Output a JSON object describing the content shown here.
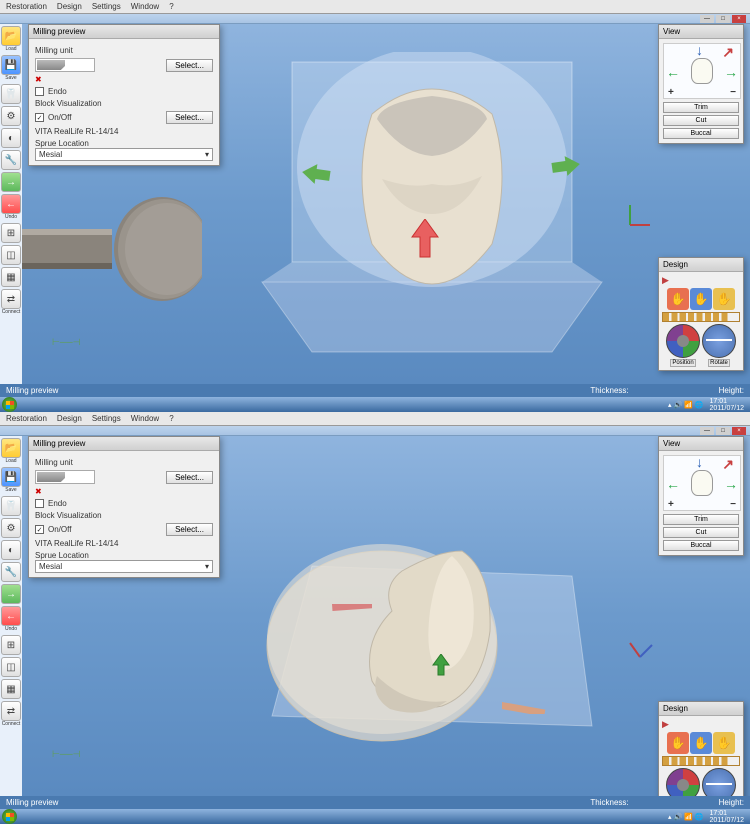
{
  "menubar": {
    "items": [
      "Restoration",
      "Design",
      "Settings",
      "Window",
      "?"
    ]
  },
  "windowButtons": {
    "min": "—",
    "max": "□",
    "close": "×"
  },
  "leftToolbar": [
    {
      "name": "load-icon",
      "label": "Load",
      "bg": "yellow",
      "glyph": "📂"
    },
    {
      "name": "save-icon",
      "label": "Save",
      "bg": "blue",
      "glyph": "💾"
    },
    {
      "name": "tool3-icon",
      "label": "",
      "bg": "",
      "glyph": "🦷"
    },
    {
      "name": "tool4-icon",
      "label": "",
      "bg": "",
      "glyph": "⚙"
    },
    {
      "name": "tool5-icon",
      "label": "",
      "bg": "",
      "glyph": "◐"
    },
    {
      "name": "tool6-icon",
      "label": "",
      "bg": "",
      "glyph": "🔧"
    },
    {
      "name": "tool7-icon",
      "label": "",
      "bg": "green",
      "glyph": "→"
    },
    {
      "name": "undo-icon",
      "label": "Undo",
      "bg": "red",
      "glyph": "←"
    },
    {
      "name": "tool9-icon",
      "label": "",
      "bg": "",
      "glyph": "⊞"
    },
    {
      "name": "tool10-icon",
      "label": "",
      "bg": "",
      "glyph": "◫"
    },
    {
      "name": "tool11-icon",
      "label": "",
      "bg": "",
      "glyph": "▦"
    },
    {
      "name": "connect-icon",
      "label": "Connect",
      "bg": "",
      "glyph": "⇄"
    }
  ],
  "millingPanel": {
    "title": "Milling preview",
    "unitLabel": "Milling unit",
    "selectBtn": "Select...",
    "endoLabel": "Endo",
    "endoChecked": false,
    "blockVisLabel": "Block Visualization",
    "onOffLabel": "On/Off",
    "onOffChecked": true,
    "materialText": "VITA RealLife RL-14/14",
    "sprueLabel": "Sprue Location",
    "sprueValue": "Mesial"
  },
  "viewPanel": {
    "title": "View",
    "btns": [
      "Trim",
      "Cut",
      "Buccal"
    ],
    "arrowColors": {
      "up": "#2a5fb4",
      "down": "#2aa84a",
      "left": "#2aa84a",
      "right": "#2aa84a",
      "upRight": "#c84040"
    }
  },
  "designPanel": {
    "title": "Design",
    "pointer": "▶",
    "hands": [
      {
        "bg": "#e87050",
        "glyph": "✋"
      },
      {
        "bg": "#5a8ad8",
        "glyph": "✋"
      },
      {
        "bg": "#e8c050",
        "glyph": "✋"
      }
    ],
    "positionLabel": "Position",
    "rotateLabel": "Rotate",
    "wheel1": {
      "c1": "#d04040",
      "c2": "#40a040",
      "c3": "#4060c0",
      "c4": "#804090"
    },
    "wheel2": {
      "c": "#5a8ad8"
    }
  },
  "statusbar": {
    "left": "Milling preview",
    "thickness": "Thickness:",
    "height": "Height:"
  },
  "taskbar": {
    "time": "17:01",
    "date": "2011/07/12",
    "trayIcons": "▴ 🔊 📶 🌐"
  },
  "scene1": {
    "viewportBg": "linear-gradient(180deg,#8fb4de 0%,#6c9acc 50%,#5a8ac0 100%)",
    "blockColor": "rgba(200,220,245,0.45)",
    "platformColor": "rgba(180,200,230,0.5)",
    "chuckColor": "#9a948c",
    "toothColor": "#e8e0d0",
    "arrowUpColor": "#e85050",
    "sideArrowColor": "#5fb050",
    "designPanelTop": 233
  },
  "scene2": {
    "designPanelTop": 265,
    "smallArrowColor": "#40a040",
    "barColor1": "#d88080",
    "barColor2": "#d8a080"
  }
}
